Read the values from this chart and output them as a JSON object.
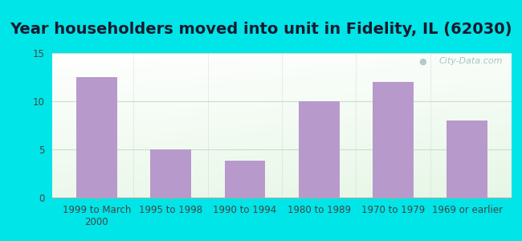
{
  "title": "Year householders moved into unit in Fidelity, IL (62030)",
  "categories": [
    "1999 to March\n2000",
    "1995 to 1998",
    "1990 to 1994",
    "1980 to 1989",
    "1970 to 1979",
    "1969 or earlier"
  ],
  "values": [
    12.5,
    5.0,
    3.8,
    10.0,
    12.0,
    8.0
  ],
  "bar_color": "#b899cc",
  "background_outer": "#00e5e8",
  "ylim": [
    0,
    15
  ],
  "yticks": [
    0,
    5,
    10,
    15
  ],
  "grid_color": "#c8e0c8",
  "title_fontsize": 14,
  "tick_fontsize": 8.5,
  "watermark": "City-Data.com"
}
